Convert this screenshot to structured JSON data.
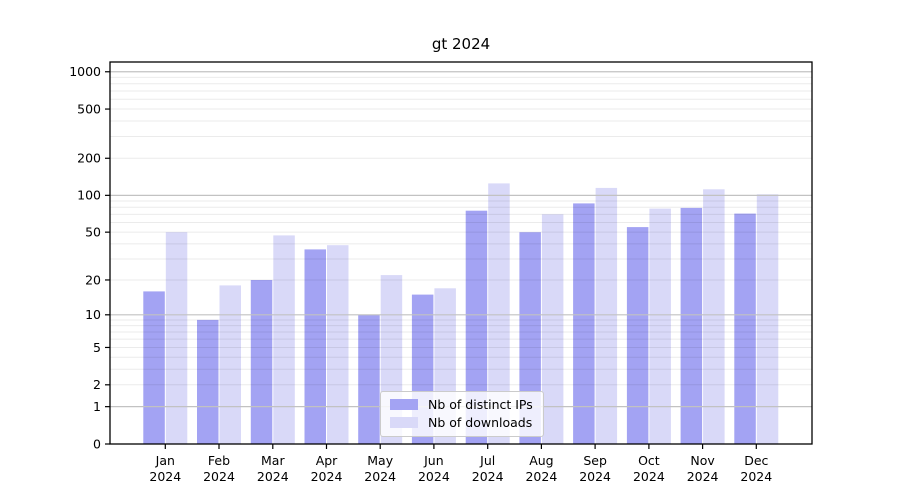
{
  "chart_data": {
    "type": "bar",
    "title": "gt 2024",
    "scale": "log1p",
    "xlabel": "",
    "ylabel": "",
    "ylim": [
      0,
      1200
    ],
    "grid": {
      "major_values": [
        1,
        10,
        100,
        1000
      ],
      "minor": "on"
    },
    "legend_position": "lower-center-inside",
    "y_ticks": [
      0,
      1,
      2,
      5,
      10,
      20,
      50,
      100,
      200,
      500,
      1000
    ],
    "categories": [
      {
        "month": "Jan",
        "year": "2024"
      },
      {
        "month": "Feb",
        "year": "2024"
      },
      {
        "month": "Mar",
        "year": "2024"
      },
      {
        "month": "Apr",
        "year": "2024"
      },
      {
        "month": "May",
        "year": "2024"
      },
      {
        "month": "Jun",
        "year": "2024"
      },
      {
        "month": "Jul",
        "year": "2024"
      },
      {
        "month": "Aug",
        "year": "2024"
      },
      {
        "month": "Sep",
        "year": "2024"
      },
      {
        "month": "Oct",
        "year": "2024"
      },
      {
        "month": "Nov",
        "year": "2024"
      },
      {
        "month": "Dec",
        "year": "2024"
      }
    ],
    "series": [
      {
        "name": "Nb of distinct IPs",
        "color": "#a3a3f3",
        "values": [
          16,
          9,
          20,
          36,
          10,
          15,
          75,
          50,
          86,
          55,
          79,
          71
        ]
      },
      {
        "name": "Nb of downloads",
        "color": "#d9d9f8",
        "values": [
          50,
          18,
          47,
          39,
          22,
          17,
          125,
          70,
          115,
          78,
          112,
          102
        ]
      }
    ]
  },
  "colors": {
    "axis": "#000000",
    "major_grid": "#c2c2c2",
    "minor_grid": "rgba(0,0,0,0.08)"
  }
}
